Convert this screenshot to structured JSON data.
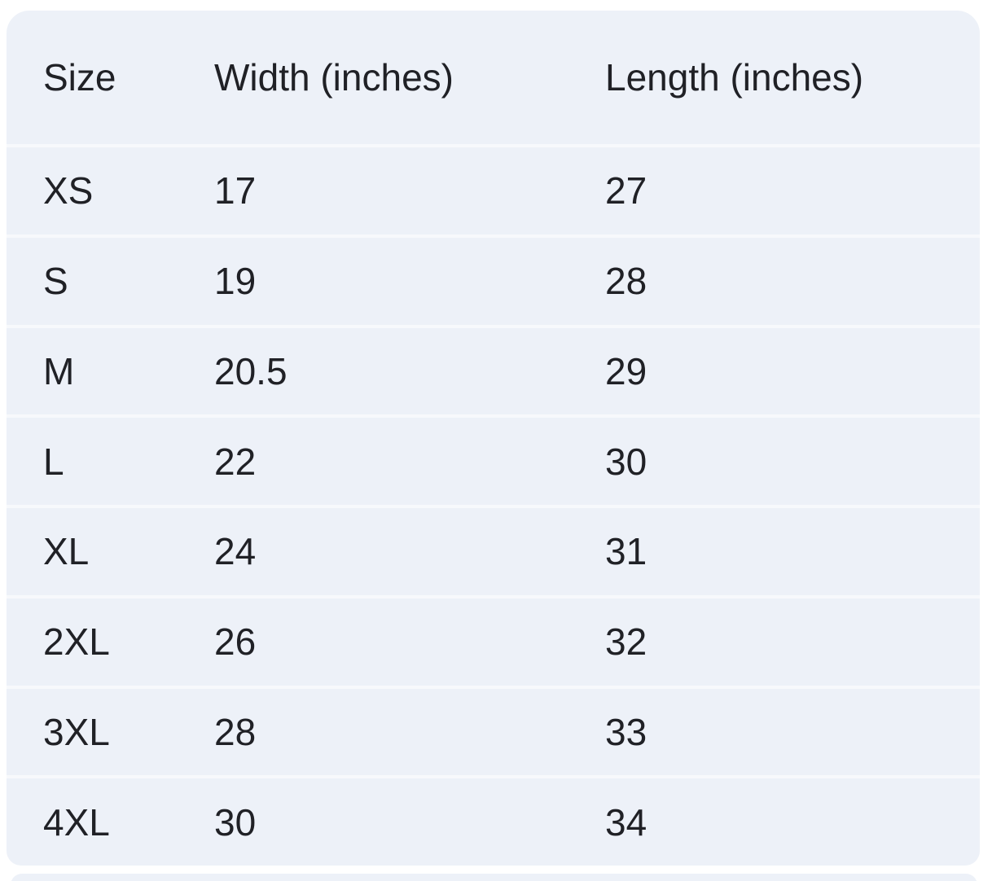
{
  "size_chart": {
    "columns": [
      {
        "label": "Size"
      },
      {
        "label": "Width (inches)"
      },
      {
        "label": "Length (inches)"
      }
    ],
    "rows": [
      {
        "size": "XS",
        "width": "17",
        "length": "27"
      },
      {
        "size": "S",
        "width": "19",
        "length": "28"
      },
      {
        "size": "M",
        "width": "20.5",
        "length": "29"
      },
      {
        "size": "L",
        "width": "22",
        "length": "30"
      },
      {
        "size": "XL",
        "width": "24",
        "length": "31"
      },
      {
        "size": "2XL",
        "width": "26",
        "length": "32"
      },
      {
        "size": "3XL",
        "width": "28",
        "length": "33"
      },
      {
        "size": "4XL",
        "width": "30",
        "length": "34"
      }
    ],
    "colors": {
      "card_background": "#edf1f8",
      "row_divider": "#f7f9fc",
      "text": "#202126",
      "page_background": "#ffffff"
    }
  },
  "chart_data": {
    "type": "table",
    "title": "",
    "columns": [
      "Size",
      "Width (inches)",
      "Length (inches)"
    ],
    "rows": [
      [
        "XS",
        17,
        27
      ],
      [
        "S",
        19,
        28
      ],
      [
        "M",
        20.5,
        29
      ],
      [
        "L",
        22,
        30
      ],
      [
        "XL",
        24,
        31
      ],
      [
        "2XL",
        26,
        32
      ],
      [
        "3XL",
        28,
        33
      ],
      [
        "4XL",
        30,
        34
      ]
    ]
  }
}
